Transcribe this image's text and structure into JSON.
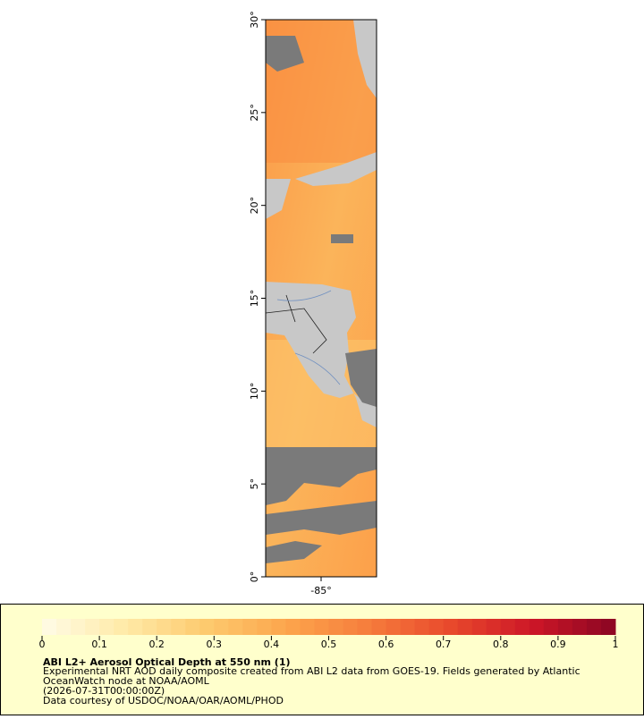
{
  "map": {
    "lat_range": [
      0,
      30
    ],
    "lon_range": [
      -86.5,
      -83.5
    ],
    "lat_ticks": [
      {
        "value": 0,
        "label": "0°"
      },
      {
        "value": 5,
        "label": "5°"
      },
      {
        "value": 10,
        "label": "10°"
      },
      {
        "value": 15,
        "label": "15°"
      },
      {
        "value": 20,
        "label": "20°"
      },
      {
        "value": 25,
        "label": "25°"
      },
      {
        "value": 30,
        "label": "30°"
      }
    ],
    "lon_ticks": [
      {
        "value": -85,
        "label": "-85°"
      }
    ]
  },
  "colorbar": {
    "range": [
      0,
      1
    ],
    "ticks": [
      0,
      0.1,
      0.2,
      0.3,
      0.4,
      0.5,
      0.6,
      0.7,
      0.8,
      0.9,
      1
    ],
    "colors": [
      "#fffbe6",
      "#ffeaa8",
      "#fdca6e",
      "#fca54c",
      "#f67c3c",
      "#e8482c",
      "#cc1627",
      "#8a0623"
    ]
  },
  "legend": {
    "title": "ABI L2+ Aerosol Optical Depth at 550 nm (1)",
    "lines": [
      "Experimental NRT AOD daily composite created from ABI L2 data from GOES-19. Fields generated by Atlantic",
      "OceanWatch node at NOAA/AOML",
      "(2026-07-31T00:00:00Z)",
      "Data courtesy of USDOC/NOAA/OAR/AOML/PHOD"
    ]
  }
}
